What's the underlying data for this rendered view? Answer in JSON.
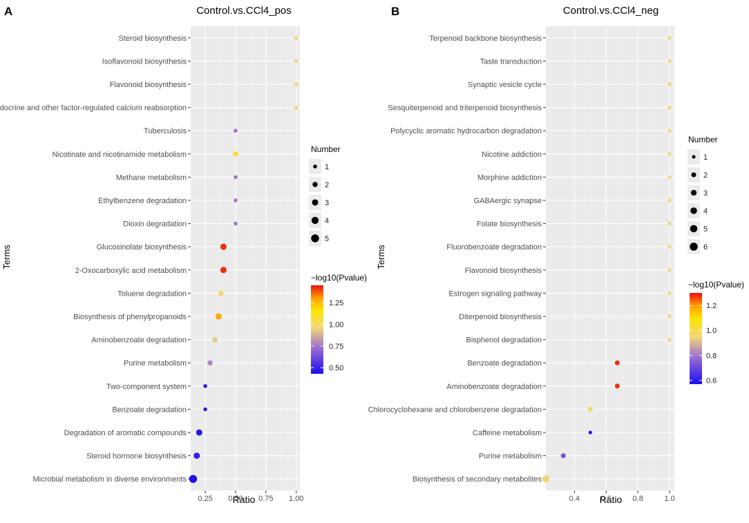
{
  "chart_data": [
    {
      "type": "scatter",
      "panel_label": "A",
      "title": "Control.vs.CCl4_pos",
      "xlabel": "Ratio",
      "ylabel": "Terms",
      "xlim": [
        0.13,
        1.03
      ],
      "xticks": [
        0.25,
        0.5,
        0.75,
        1.0
      ],
      "xtick_labels": [
        "0.25",
        "0.50",
        "0.75",
        "1.00"
      ],
      "grid": true,
      "terms": [
        "Steroid biosynthesis",
        "Isoflavonoid biosynthesis",
        "Flavonoid biosynthesis",
        "Endocrine and other factor-regulated calcium reabsorption",
        "Tuberculosis",
        "Nicotinate and nicotinamide metabolism",
        "Methane metabolism",
        "Ethylbenzene degradation",
        "Dioxin degradation",
        "Glucosinolate biosynthesis",
        "2-Oxocarboxylic acid metabolism",
        "Toluene degradation",
        "Biosynthesis of phenylpropanoids",
        "Aminobenzoate degradation",
        "Purine metabolism",
        "Two-component system",
        "Benzoate degradation",
        "Degradation of aromatic compounds",
        "Steroid hormone biosynthesis",
        "Microbial metabolism in diverse environments"
      ],
      "ratio": [
        1.0,
        1.0,
        1.0,
        1.0,
        0.5,
        0.5,
        0.5,
        0.5,
        0.5,
        0.4,
        0.4,
        0.38,
        0.36,
        0.33,
        0.29,
        0.25,
        0.25,
        0.2,
        0.18,
        0.15
      ],
      "number": [
        1,
        1,
        1,
        1,
        1,
        2,
        1,
        1,
        1,
        3,
        3,
        2,
        3,
        2,
        2,
        1,
        1,
        3,
        3,
        5
      ],
      "neg_log10_p": [
        0.96,
        0.96,
        0.96,
        0.96,
        0.74,
        1.08,
        0.74,
        0.74,
        0.74,
        1.42,
        1.42,
        1.0,
        1.28,
        0.93,
        0.78,
        0.46,
        0.46,
        0.46,
        0.49,
        0.44
      ],
      "size_legend": {
        "title": "Number",
        "values": [
          1,
          2,
          3,
          4,
          5
        ],
        "labels": [
          "1",
          "2",
          "3",
          "4",
          "5"
        ]
      },
      "color_legend": {
        "title": "−log10(Pvalue)",
        "min": 0.43,
        "max": 1.45,
        "ticks": [
          0.5,
          0.75,
          1.0,
          1.25
        ],
        "tick_labels": [
          "0.50",
          "0.75",
          "1.00",
          "1.25"
        ]
      }
    },
    {
      "type": "scatter",
      "panel_label": "B",
      "title": "Control.vs.CCl4_neg",
      "xlabel": "Ratio",
      "ylabel": "Terms",
      "xlim": [
        0.22,
        1.03
      ],
      "xticks": [
        0.4,
        0.6,
        0.8,
        1.0
      ],
      "xtick_labels": [
        "0.4",
        "0.6",
        "0.8",
        "1.0"
      ],
      "grid": true,
      "terms": [
        "Terpenoid backbone biosynthesis",
        "Taste transduction",
        "Synaptic vesicle cycle",
        "Sesquiterpenoid and triterpenoid biosynthesis",
        "Polycyclic aromatic hydrocarbon degradation",
        "Nicotine addiction",
        "Morphine addiction",
        "GABAergic synapse",
        "Folate biosynthesis",
        "Fluorobenzoate degradation",
        "Flavonoid biosynthesis",
        "Estrogen signaling pathway",
        "Diterpenoid biosynthesis",
        "Bisphenol degradation",
        "Benzoate degradation",
        "Aminobenzoate degradation",
        "Chlorocyclohexane and chlorobenzene degradation",
        "Caffeine metabolism",
        "Purine metabolism",
        "Biosynthesis of secondary metabolites"
      ],
      "ratio": [
        1.0,
        1.0,
        1.0,
        1.0,
        1.0,
        1.0,
        1.0,
        1.0,
        1.0,
        1.0,
        1.0,
        1.0,
        1.0,
        1.0,
        0.67,
        0.67,
        0.5,
        0.5,
        0.33,
        0.22
      ],
      "number": [
        1,
        1,
        1,
        1,
        1,
        1,
        1,
        1,
        1,
        1,
        1,
        1,
        1,
        1,
        2,
        2,
        2,
        1,
        2,
        5
      ],
      "neg_log10_p": [
        0.95,
        0.95,
        0.95,
        0.95,
        0.95,
        0.95,
        0.95,
        0.95,
        0.95,
        0.95,
        0.95,
        0.95,
        0.95,
        0.95,
        1.28,
        1.28,
        0.98,
        0.58,
        0.72,
        0.95
      ],
      "size_legend": {
        "title": "Number",
        "values": [
          1,
          2,
          3,
          4,
          5,
          6
        ],
        "labels": [
          "1",
          "2",
          "3",
          "4",
          "5",
          "6"
        ]
      },
      "color_legend": {
        "title": "−log10(Pvalue)",
        "min": 0.57,
        "max": 1.3,
        "ticks": [
          0.6,
          0.8,
          1.0,
          1.2
        ],
        "tick_labels": [
          "0.6",
          "0.8",
          "1.0",
          "1.2"
        ]
      }
    }
  ]
}
